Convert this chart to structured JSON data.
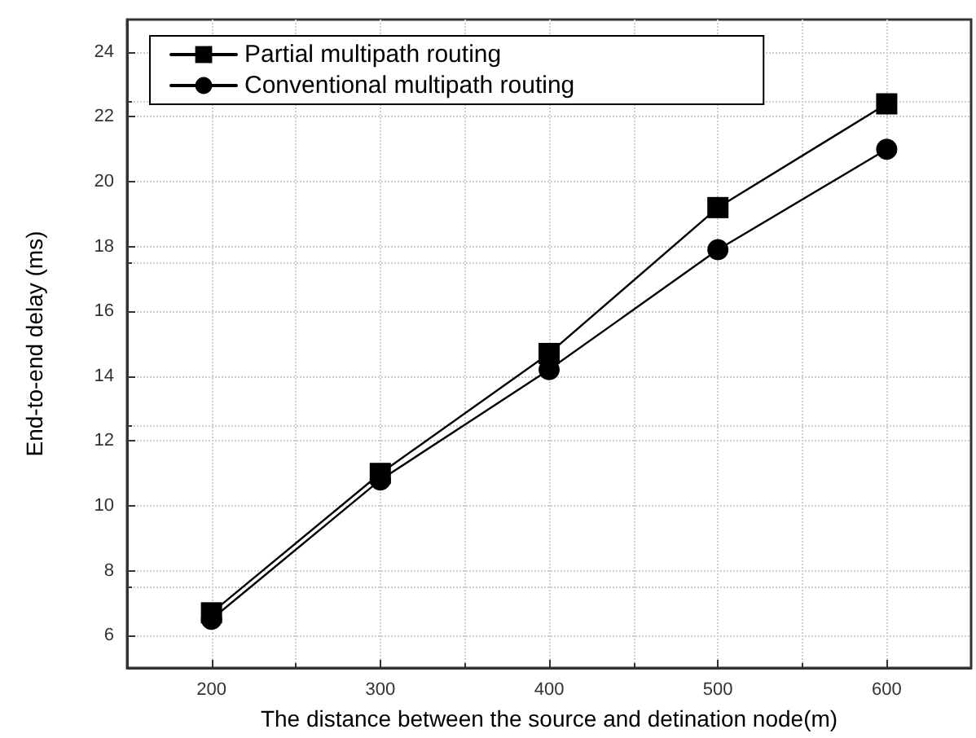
{
  "chart_data": {
    "type": "line",
    "xlabel": "The distance between the source and detination node(m)",
    "ylabel": "End-to-end delay (ms)",
    "x": [
      200,
      300,
      400,
      500,
      600
    ],
    "series": [
      {
        "name": "Partial multipath routing",
        "color": "#000000",
        "marker": "square",
        "values": [
          6.7,
          11.0,
          14.7,
          19.2,
          22.4
        ]
      },
      {
        "name": "Conventional multipath routing",
        "color": "#000000",
        "marker": "circle",
        "values": [
          6.5,
          10.8,
          14.2,
          17.9,
          21.0
        ]
      }
    ],
    "xlim": [
      150,
      650
    ],
    "xticks": [
      200,
      300,
      400,
      500,
      600
    ],
    "ylim": [
      5,
      25
    ],
    "yticks": [
      6,
      8,
      10,
      12,
      14,
      16,
      18,
      20,
      22,
      24
    ],
    "grid": true,
    "legend": "top left",
    "line_style": "solid"
  }
}
